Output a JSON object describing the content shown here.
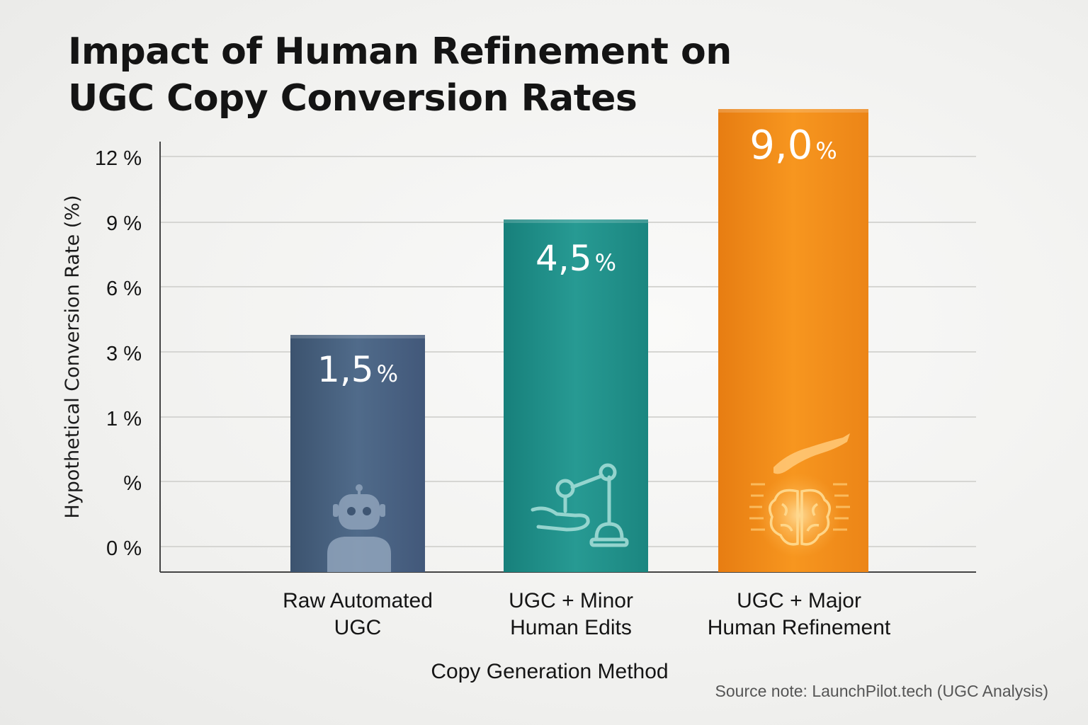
{
  "chart_data": {
    "type": "bar",
    "title": "Impact of Human Refinement on UGC Copy Conversion Rates",
    "title_lines": [
      "Impact of Human Refinement on",
      "UGC Copy Conversion Rates"
    ],
    "ylabel": "Hypothetical Conversion Rate (%)",
    "xlabel": "Copy Generation Method",
    "y_tick_labels": [
      "0 %",
      "%",
      "1 %",
      "3 %",
      "6 %",
      "9 %",
      "12 %"
    ],
    "categories": [
      "Raw Automated UGC",
      "UGC + Minor Human Edits",
      "UGC + Major Human Refinement"
    ],
    "category_lines": [
      [
        "Raw Automated",
        "UGC"
      ],
      [
        "UGC + Minor",
        "Human Edits"
      ],
      [
        "UGC + Major",
        "Human Refinement"
      ]
    ],
    "values": [
      1.5,
      4.5,
      9.0
    ],
    "value_labels": [
      {
        "num": "1,5",
        "unit": "%"
      },
      {
        "num": "4,5",
        "unit": "%"
      },
      {
        "num": "9,0",
        "unit": "%"
      }
    ],
    "bar_colors": [
      "#4a6585",
      "#1f8f8a",
      "#f08a1c"
    ],
    "bar_icons": [
      "robot-icon",
      "robotic-arm-hand-icon",
      "hand-brain-icon"
    ],
    "grid": true,
    "legend": "none"
  },
  "source_note": "Source note: LaunchPilot.tech (UGC Analysis)"
}
